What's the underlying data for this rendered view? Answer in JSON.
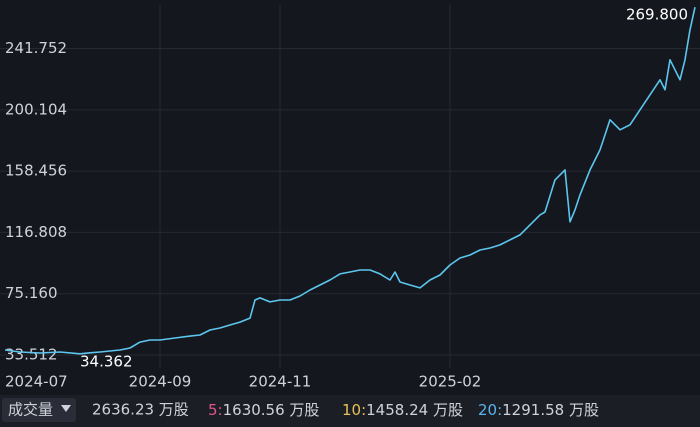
{
  "chart_data": {
    "type": "line",
    "x": [
      5,
      20,
      40,
      60,
      80,
      90,
      100,
      120,
      130,
      140,
      150,
      160,
      175,
      190,
      200,
      210,
      220,
      230,
      240,
      250,
      255,
      260,
      270,
      280,
      290,
      300,
      310,
      320,
      330,
      340,
      350,
      360,
      370,
      380,
      390,
      395,
      400,
      410,
      420,
      430,
      440,
      450,
      460,
      470,
      480,
      490,
      500,
      510,
      520,
      530,
      540,
      545,
      555,
      560,
      565,
      570,
      575,
      580,
      590,
      600,
      610,
      620,
      630,
      640,
      650,
      660,
      665,
      670,
      680,
      685,
      690,
      695
    ],
    "series": [
      {
        "color": "#5cc6ee",
        "values": [
          36.9,
          35.6,
          34.9,
          35.6,
          34.362,
          35.0,
          35.6,
          36.9,
          38.3,
          42.3,
          43.7,
          43.7,
          45.1,
          46.4,
          47.1,
          50.5,
          51.9,
          53.9,
          55.9,
          58.6,
          70.9,
          72.3,
          69.6,
          70.9,
          70.9,
          73.6,
          77.7,
          81.1,
          84.5,
          88.6,
          89.9,
          91.3,
          91.3,
          88.6,
          84.5,
          89.9,
          83.1,
          81.1,
          79.1,
          84.5,
          87.9,
          94.7,
          99.4,
          101.5,
          104.9,
          106.2,
          108.3,
          111.7,
          115.1,
          121.9,
          128.7,
          130.7,
          152.5,
          155.9,
          159.3,
          124.0,
          132.1,
          142.3,
          159.3,
          172.9,
          193.3,
          186.5,
          189.9,
          200.1,
          210.3,
          220.5,
          213.7,
          234.1,
          220.5,
          234.1,
          254.5,
          269.8
        ]
      }
    ],
    "xlim": [
      0,
      700
    ],
    "xticks": [
      {
        "value": 5,
        "label": "2024-07"
      },
      {
        "value": 160,
        "label": "2024-09"
      },
      {
        "value": 280,
        "label": "2024-11"
      },
      {
        "value": 450,
        "label": "2025-02"
      }
    ],
    "ylim": [
      24.7,
      272
    ],
    "yticks": [
      33.512,
      {
        "value": 75.16,
        "label": "75.160"
      },
      116.808,
      158.456,
      200.104,
      241.752
    ],
    "grid": true,
    "annotations": [
      {
        "text": "269.800",
        "x": 695,
        "y": 269.8
      },
      {
        "text": "34.362",
        "x": 80,
        "y": 34.362
      }
    ]
  },
  "volume_bar": {
    "button": "成交量",
    "total": "2636.23 万股",
    "averages": [
      {
        "period": "5:",
        "value": "1630.56 万股",
        "color": "#e0558f"
      },
      {
        "period": "10:",
        "value": "1458.24 万股",
        "color": "#e8c05a"
      },
      {
        "period": "20:",
        "value": "1291.58 万股",
        "color": "#5cb4ee"
      }
    ]
  }
}
